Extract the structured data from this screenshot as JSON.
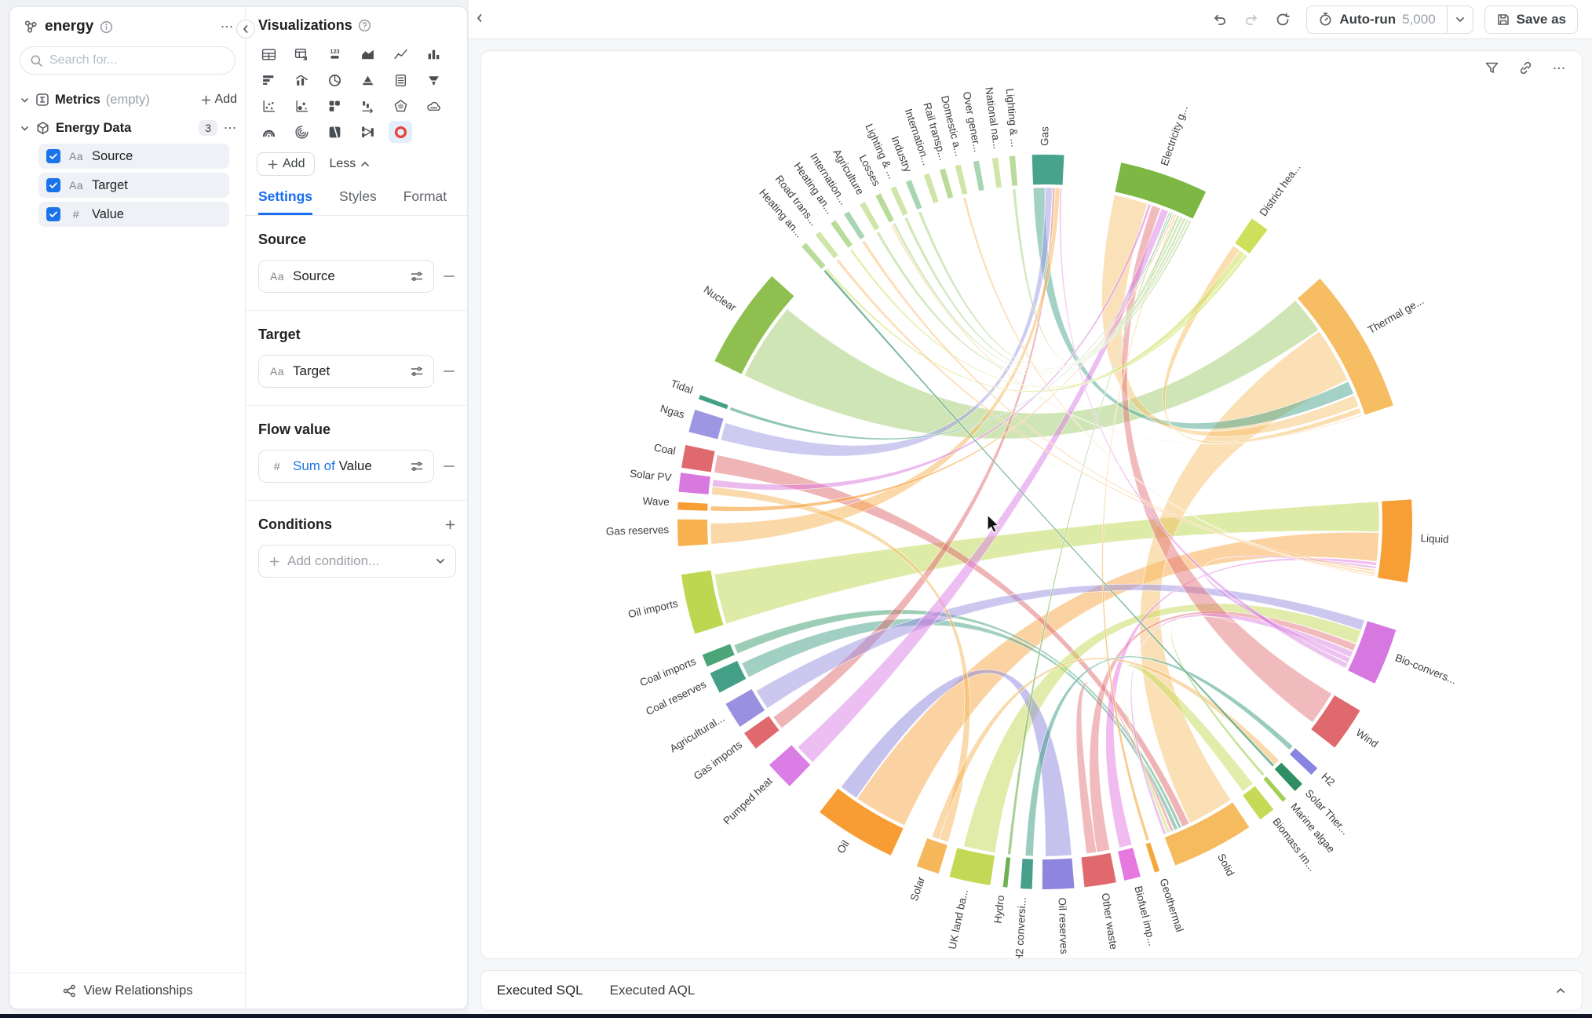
{
  "sidebar": {
    "app_name": "energy",
    "search_placeholder": "Search for...",
    "metrics_label": "Metrics",
    "metrics_empty": "(empty)",
    "metrics_add": "Add",
    "dataset_name": "Energy Data",
    "dataset_count": "3",
    "fields": [
      {
        "label": "Source",
        "type": "Aa"
      },
      {
        "label": "Target",
        "type": "Aa"
      },
      {
        "label": "Value",
        "type": "#"
      }
    ],
    "view_relationships": "View Relationships"
  },
  "viz_panel": {
    "title": "Visualizations",
    "icons": [
      "table",
      "pivot-table",
      "single-value",
      "area-chart",
      "line-chart",
      "bar-chart",
      "horizontal-bar-chart",
      "combo-chart",
      "donut-chart",
      "funnel-chart",
      "summary-card",
      "pyramid-chart",
      "scatter-plot",
      "bubble-chart",
      "waffle-chart",
      "waterfall-chart",
      "radar-chart",
      "word-cloud",
      "gauge-chart",
      "spiral-chart",
      "treemap",
      "sankey-diagram",
      "chord-diagram"
    ],
    "selected_icon": "chord-diagram",
    "add_label": "Add",
    "less_label": "Less",
    "tabs": [
      "Settings",
      "Styles",
      "Format"
    ],
    "active_tab": "Settings",
    "source_section": {
      "title": "Source",
      "field": "Source",
      "type": "Aa"
    },
    "target_section": {
      "title": "Target",
      "field": "Target",
      "type": "Aa"
    },
    "flow_section": {
      "title": "Flow value",
      "aggregate": "Sum of",
      "field": "Value",
      "type": "#"
    },
    "conditions_section": {
      "title": "Conditions",
      "placeholder": "Add condition..."
    }
  },
  "topbar": {
    "autorun_label": "Auto-run",
    "autorun_value": "5,000",
    "save_as_label": "Save as"
  },
  "bottom_bar": {
    "tabs": [
      "Executed SQL",
      "Executed AQL"
    ]
  },
  "colors": {
    "accent_blue": "#1a73e8",
    "selected_viz_bg": "#e4eefb",
    "chord_icon_red": "#e8453c",
    "checkbox_blue": "#1a73e8"
  },
  "chart_data": {
    "type": "chord",
    "title": "",
    "nodes": [
      {
        "label": "Gas",
        "angle": 0.5,
        "span": 5,
        "color": "#47a38c"
      },
      {
        "label": "Electricity g...",
        "angle": 19,
        "span": 14,
        "color": "#7cb843"
      },
      {
        "label": "District hea...",
        "angle": 35.8,
        "span": 3,
        "color": "#cde05c"
      },
      {
        "label": "Thermal ge...",
        "angle": 60,
        "span": 23,
        "color": "#f6bd62"
      },
      {
        "label": "Liquid",
        "angle": 93,
        "span": 13,
        "color": "#f79f35"
      },
      {
        "label": "Bio-convers...",
        "angle": 111.6,
        "span": 9,
        "color": "#d678e0"
      },
      {
        "label": "Wind",
        "angle": 124.4,
        "span": 7,
        "color": "#e0696e"
      },
      {
        "label": "H2",
        "angle": 132.8,
        "span": 1.4,
        "color": "#8784e2"
      },
      {
        "label": "Solar Ther...",
        "angle": 136.3,
        "span": 1.6,
        "color": "#2f8f63"
      },
      {
        "label": "Marine algae",
        "angle": 139.3,
        "span": 0.7,
        "color": "#a3cf53"
      },
      {
        "label": "Biomass im...",
        "angle": 142.8,
        "span": 2.6,
        "color": "#c6da58"
      },
      {
        "label": "Solid",
        "angle": 152.7,
        "span": 13,
        "color": "#f6bb5e"
      },
      {
        "label": "Geothermal",
        "angle": 162.2,
        "span": 0.8,
        "color": "#f4a93c"
      },
      {
        "label": "Biofuel imp...",
        "angle": 166.2,
        "span": 2.6,
        "color": "#e678df"
      },
      {
        "label": "Other waste",
        "angle": 171.3,
        "span": 5,
        "color": "#e0696e"
      },
      {
        "label": "Oil reserves",
        "angle": 177.9,
        "span": 5,
        "color": "#8e86de"
      },
      {
        "label": "H2 conversi...",
        "angle": 182.9,
        "span": 1.8,
        "color": "#47a08b"
      },
      {
        "label": "Hydro",
        "angle": 186.2,
        "span": 0.7,
        "color": "#6fb052"
      },
      {
        "label": "UK land ba...",
        "angle": 191.8,
        "span": 6.5,
        "color": "#c3d955"
      },
      {
        "label": "Solar",
        "angle": 198.6,
        "span": 3.6,
        "color": "#f6b65a"
      },
      {
        "label": "Oil",
        "angle": 211.3,
        "span": 13,
        "color": "#f79d33"
      },
      {
        "label": "Pumped heat",
        "angle": 226.3,
        "span": 4.6,
        "color": "#da7de4"
      },
      {
        "label": "Gas imports",
        "angle": 233.4,
        "span": 3,
        "color": "#e0696e"
      },
      {
        "label": "Agricultural...",
        "angle": 238.2,
        "span": 4.2,
        "color": "#9a90e0"
      },
      {
        "label": "Coal reserves",
        "angle": 244,
        "span": 3.4,
        "color": "#43a086"
      },
      {
        "label": "Coal imports",
        "angle": 247.8,
        "span": 2,
        "color": "#4ba578"
      },
      {
        "label": "Oil imports",
        "angle": 257,
        "span": 9.5,
        "color": "#bdd850"
      },
      {
        "label": "Gas reserves",
        "angle": 268.3,
        "span": 4.2,
        "color": "#f7b14f"
      },
      {
        "label": "Wave",
        "angle": 272.5,
        "span": 1.2,
        "color": "#f79d33"
      },
      {
        "label": "Solar PV",
        "angle": 276.2,
        "span": 3,
        "color": "#d978de"
      },
      {
        "label": "Coal",
        "angle": 280.3,
        "span": 3.6,
        "color": "#e0696e"
      },
      {
        "label": "Ngas",
        "angle": 286,
        "span": 3.6,
        "color": "#9d97e3"
      },
      {
        "label": "Tidal",
        "angle": 289.9,
        "span": 0.7,
        "color": "#43a086"
      },
      {
        "label": "Nuclear",
        "angle": 304,
        "span": 16,
        "color": "#8fc04f"
      },
      {
        "label": "Heating an...",
        "angle": 319,
        "span": 0.9,
        "color": "#b9dc9a"
      },
      {
        "label": "Road trans...",
        "angle": 321.8,
        "span": 0.9,
        "color": "#cfe6a8"
      },
      {
        "label": "Heating an...",
        "angle": 324.8,
        "span": 0.9,
        "color": "#b9dc9a"
      },
      {
        "label": "Internation...",
        "angle": 327.3,
        "span": 0.9,
        "color": "#a8d5b2"
      },
      {
        "label": "Agriculture",
        "angle": 330.2,
        "span": 0.9,
        "color": "#cfe6a8"
      },
      {
        "label": "Losses",
        "angle": 333,
        "span": 0.9,
        "color": "#b9dc9a"
      },
      {
        "label": "Lighting & ...",
        "angle": 335.6,
        "span": 0.9,
        "color": "#cfe6a8"
      },
      {
        "label": "Industry",
        "angle": 338.2,
        "span": 0.9,
        "color": "#a8d5b2"
      },
      {
        "label": "Internation...",
        "angle": 341.2,
        "span": 0.9,
        "color": "#cfe6a8"
      },
      {
        "label": "Rail transp...",
        "angle": 343.8,
        "span": 0.9,
        "color": "#b9dc9a"
      },
      {
        "label": "Domestic a...",
        "angle": 346.3,
        "span": 0.9,
        "color": "#cfe6a8"
      },
      {
        "label": "Over gener...",
        "angle": 349.2,
        "span": 0.9,
        "color": "#a8d5b2"
      },
      {
        "label": "National na...",
        "angle": 352.2,
        "span": 0.9,
        "color": "#cfe6a8"
      },
      {
        "label": "Lighting & ...",
        "angle": 354.9,
        "span": 0.9,
        "color": "#b9dc9a"
      }
    ],
    "ribbons": [
      {
        "s": 33,
        "t": 3,
        "sw": 0.85,
        "tw": 0.28,
        "color": "#8fc04f",
        "op": 0.42
      },
      {
        "s": 26,
        "t": 4,
        "sw": 0.92,
        "tw": 0.4,
        "color": "#bdd850",
        "op": 0.5
      },
      {
        "s": 20,
        "t": 4,
        "sw": 0.72,
        "tw": 0.38,
        "color": "#f79d33",
        "op": 0.45
      },
      {
        "s": 11,
        "t": 3,
        "sw": 0.62,
        "tw": 0.42,
        "color": "#f6bb5e",
        "op": 0.45
      },
      {
        "s": 0,
        "t": 3,
        "sw": 0.4,
        "tw": 0.1,
        "color": "#47a38c",
        "op": 0.5
      },
      {
        "s": 3,
        "t": 1,
        "sw": 0.09,
        "tw": 0.42,
        "color": "#f6bd62",
        "op": 0.45
      },
      {
        "s": 3,
        "t": 2,
        "sw": 0.04,
        "tw": 0.45,
        "color": "#f6bd62",
        "op": 0.5
      },
      {
        "s": 3,
        "t": 39,
        "sw": 0.02,
        "tw": 0.5,
        "color": "#f6bd62",
        "op": 0.35
      },
      {
        "s": 31,
        "t": 0,
        "sw": 0.85,
        "tw": 0.24,
        "color": "#9d97e3",
        "op": 0.5
      },
      {
        "s": 30,
        "t": 11,
        "sw": 0.85,
        "tw": 0.1,
        "color": "#e0696e",
        "op": 0.5
      },
      {
        "s": 25,
        "t": 11,
        "sw": 0.8,
        "tw": 0.04,
        "color": "#4ba578",
        "op": 0.55
      },
      {
        "s": 24,
        "t": 11,
        "sw": 0.8,
        "tw": 0.05,
        "color": "#43a086",
        "op": 0.5
      },
      {
        "s": 22,
        "t": 0,
        "sw": 0.8,
        "tw": 0.08,
        "color": "#e0696e",
        "op": 0.5
      },
      {
        "s": 27,
        "t": 0,
        "sw": 0.85,
        "tw": 0.16,
        "color": "#f7b14f",
        "op": 0.5
      },
      {
        "s": 23,
        "t": 5,
        "sw": 0.85,
        "tw": 0.2,
        "color": "#9a90e0",
        "op": 0.5
      },
      {
        "s": 18,
        "t": 5,
        "sw": 0.85,
        "tw": 0.26,
        "color": "#c3d955",
        "op": 0.5
      },
      {
        "s": 14,
        "t": 5,
        "sw": 0.45,
        "tw": 0.14,
        "color": "#e0696e",
        "op": 0.45
      },
      {
        "s": 14,
        "t": 11,
        "sw": 0.35,
        "tw": 0.04,
        "color": "#e0696e",
        "op": 0.45
      },
      {
        "s": 10,
        "t": 11,
        "sw": 0.85,
        "tw": 0.04,
        "color": "#c6da58",
        "op": 0.5
      },
      {
        "s": 13,
        "t": 4,
        "sw": 0.85,
        "tw": 0.04,
        "color": "#e678df",
        "op": 0.5
      },
      {
        "s": 15,
        "t": 20,
        "sw": 0.9,
        "tw": 0.25,
        "color": "#8e86de",
        "op": 0.5
      },
      {
        "s": 19,
        "t": 29,
        "sw": 0.45,
        "tw": 0.45,
        "color": "#f6b65a",
        "op": 0.5
      },
      {
        "s": 19,
        "t": 8,
        "sw": 0.35,
        "tw": 0.7,
        "color": "#f6b65a",
        "op": 0.5
      },
      {
        "s": 29,
        "t": 1,
        "sw": 0.4,
        "tw": 0.035,
        "color": "#d978de",
        "op": 0.5
      },
      {
        "s": 6,
        "t": 1,
        "sw": 0.85,
        "tw": 0.11,
        "color": "#e0696e",
        "op": 0.45
      },
      {
        "s": 21,
        "t": 1,
        "sw": 0.8,
        "tw": 0.09,
        "color": "#da7de4",
        "op": 0.5
      },
      {
        "s": 17,
        "t": 1,
        "sw": 0.8,
        "tw": 0.015,
        "color": "#6fb052",
        "op": 0.6
      },
      {
        "s": 32,
        "t": 1,
        "sw": 0.8,
        "tw": 0.015,
        "color": "#43a086",
        "op": 0.6
      },
      {
        "s": 28,
        "t": 1,
        "sw": 0.7,
        "tw": 0.015,
        "color": "#f79d33",
        "op": 0.6
      },
      {
        "s": 12,
        "t": 1,
        "sw": 0.7,
        "tw": 0.015,
        "color": "#f4a93c",
        "op": 0.6
      },
      {
        "s": 16,
        "t": 7,
        "sw": 0.75,
        "tw": 0.65,
        "color": "#47a08b",
        "op": 0.55
      },
      {
        "s": 5,
        "t": 11,
        "sw": 0.12,
        "tw": 0.04,
        "color": "#d678e0",
        "op": 0.45
      },
      {
        "s": 5,
        "t": 4,
        "sw": 0.1,
        "tw": 0.03,
        "color": "#d678e0",
        "op": 0.45
      },
      {
        "s": 5,
        "t": 0,
        "sw": 0.1,
        "tw": 0.06,
        "color": "#d678e0",
        "op": 0.45
      },
      {
        "s": 9,
        "t": 5,
        "sw": 0.7,
        "tw": 0.01,
        "color": "#a3cf53",
        "op": 0.6
      },
      {
        "s": 8,
        "t": 34,
        "sw": 0.55,
        "tw": 0.5,
        "color": "#2f8f63",
        "op": 0.65
      },
      {
        "s": 2,
        "t": 34,
        "sw": 0.35,
        "tw": 0.45,
        "color": "#cde05c",
        "op": 0.55
      },
      {
        "s": 2,
        "t": 36,
        "sw": 0.3,
        "tw": 0.45,
        "color": "#cde05c",
        "op": 0.55
      },
      {
        "s": 1,
        "t": 47,
        "sw": 0.03,
        "tw": 0.6,
        "color": "#9cc96a",
        "op": 0.45
      },
      {
        "s": 1,
        "t": 40,
        "sw": 0.03,
        "tw": 0.6,
        "color": "#9cc96a",
        "op": 0.45
      },
      {
        "s": 1,
        "t": 41,
        "sw": 0.03,
        "tw": 0.6,
        "color": "#9cc96a",
        "op": 0.45
      },
      {
        "s": 1,
        "t": 38,
        "sw": 0.025,
        "tw": 0.6,
        "color": "#9cc96a",
        "op": 0.45
      },
      {
        "s": 1,
        "t": 39,
        "sw": 0.025,
        "tw": 0.6,
        "color": "#9cc96a",
        "op": 0.45
      },
      {
        "s": 1,
        "t": 43,
        "sw": 0.025,
        "tw": 0.6,
        "color": "#9cc96a",
        "op": 0.45
      },
      {
        "s": 1,
        "t": 45,
        "sw": 0.025,
        "tw": 0.6,
        "color": "#9cc96a",
        "op": 0.45
      },
      {
        "s": 0,
        "t": 36,
        "sw": 0.05,
        "tw": 0.5,
        "color": "#47a38c",
        "op": 0.4
      },
      {
        "s": 0,
        "t": 42,
        "sw": 0.05,
        "tw": 0.5,
        "color": "#47a38c",
        "op": 0.4
      },
      {
        "s": 4,
        "t": 35,
        "sw": 0.03,
        "tw": 0.6,
        "color": "#f79f35",
        "op": 0.35
      },
      {
        "s": 4,
        "t": 37,
        "sw": 0.025,
        "tw": 0.6,
        "color": "#f79f35",
        "op": 0.35
      },
      {
        "s": 4,
        "t": 44,
        "sw": 0.015,
        "tw": 0.5,
        "color": "#f79f35",
        "op": 0.35
      },
      {
        "s": 4,
        "t": 46,
        "sw": 0.02,
        "tw": 0.5,
        "color": "#f79f35",
        "op": 0.35
      }
    ]
  }
}
